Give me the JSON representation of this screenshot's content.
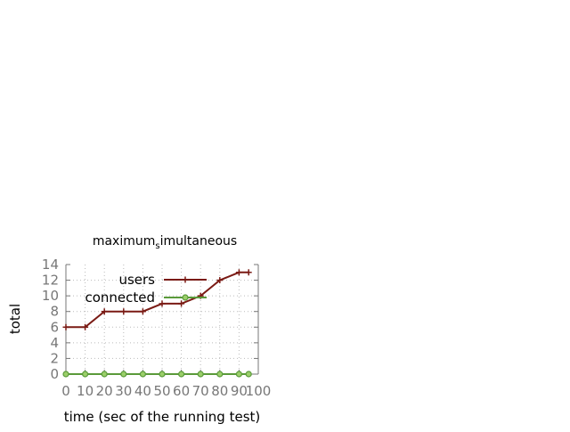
{
  "chart_data": {
    "type": "line",
    "title_main": "maximum",
    "title_sub": "s",
    "title_rest": "imultaneous",
    "xlabel": "time (sec of the running test)",
    "ylabel": "total",
    "xlim": [
      0,
      100
    ],
    "ylim": [
      0,
      14
    ],
    "xticks": [
      0,
      10,
      20,
      30,
      40,
      50,
      60,
      70,
      80,
      90,
      100
    ],
    "yticks": [
      0,
      2,
      4,
      6,
      8,
      10,
      12,
      14
    ],
    "grid": true,
    "legend_position": "top-right",
    "series": [
      {
        "name": "users",
        "color": "#7a1a14",
        "marker": "plus",
        "x": [
          0,
          10,
          20,
          30,
          40,
          50,
          60,
          70,
          80,
          90,
          95
        ],
        "y": [
          6,
          6,
          8,
          8,
          8,
          9,
          9,
          10,
          12,
          13,
          13
        ]
      },
      {
        "name": "connected",
        "color": "#5a9a3a",
        "marker": "circle",
        "x": [
          0,
          10,
          20,
          30,
          40,
          50,
          60,
          70,
          80,
          90,
          95
        ],
        "y": [
          0,
          0,
          0,
          0,
          0,
          0,
          0,
          0,
          0,
          0,
          0
        ]
      }
    ]
  }
}
